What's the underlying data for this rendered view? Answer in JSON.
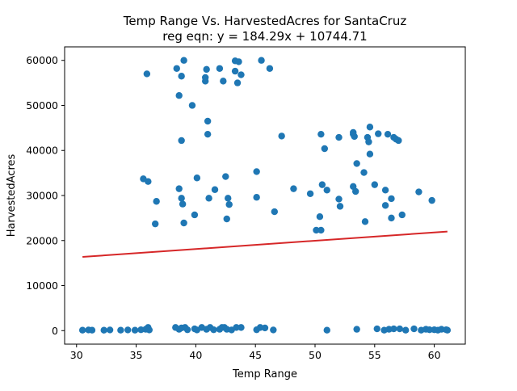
{
  "chart_data": {
    "type": "scatter",
    "title_line1": "Temp Range Vs. HarvestedAcres for SantaCruz",
    "title_line2": "reg eqn: y = 184.29x + 10744.71",
    "xlabel": "Temp Range",
    "ylabel": "HarvestedAcres",
    "xlim": [
      29.0,
      62.6
    ],
    "ylim": [
      -3000,
      63000
    ],
    "xticks": [
      30,
      35,
      40,
      45,
      50,
      55,
      60
    ],
    "yticks": [
      0,
      10000,
      20000,
      30000,
      40000,
      50000,
      60000
    ],
    "point_color": "#1f77b4",
    "line_color": "#d62728",
    "regression": {
      "slope": 184.29,
      "intercept": 10744.71,
      "x_range": [
        30.5,
        61.1
      ]
    },
    "points": [
      [
        35.9,
        57000
      ],
      [
        38.4,
        58200
      ],
      [
        38.8,
        56500
      ],
      [
        39.0,
        60000
      ],
      [
        38.6,
        52200
      ],
      [
        39.7,
        50000
      ],
      [
        40.8,
        56200
      ],
      [
        40.8,
        55400
      ],
      [
        40.9,
        58000
      ],
      [
        42.0,
        58200
      ],
      [
        42.3,
        55400
      ],
      [
        43.3,
        59900
      ],
      [
        43.3,
        57600
      ],
      [
        43.6,
        59700
      ],
      [
        43.8,
        56800
      ],
      [
        43.5,
        55000
      ],
      [
        45.5,
        60000
      ],
      [
        46.2,
        58200
      ],
      [
        41.0,
        46500
      ],
      [
        41.0,
        43600
      ],
      [
        38.8,
        42200
      ],
      [
        47.2,
        43200
      ],
      [
        35.6,
        33700
      ],
      [
        36.0,
        33100
      ],
      [
        38.6,
        31500
      ],
      [
        38.8,
        29400
      ],
      [
        38.9,
        28100
      ],
      [
        39.0,
        23900
      ],
      [
        36.7,
        28700
      ],
      [
        36.6,
        23700
      ],
      [
        40.1,
        33900
      ],
      [
        39.9,
        25700
      ],
      [
        41.1,
        29400
      ],
      [
        41.6,
        31300
      ],
      [
        42.5,
        34200
      ],
      [
        42.7,
        29400
      ],
      [
        42.8,
        28000
      ],
      [
        42.6,
        24800
      ],
      [
        45.1,
        35300
      ],
      [
        45.1,
        29600
      ],
      [
        46.6,
        26400
      ],
      [
        48.2,
        31500
      ],
      [
        49.6,
        30400
      ],
      [
        50.4,
        25300
      ],
      [
        50.1,
        22300
      ],
      [
        50.5,
        22300
      ],
      [
        50.6,
        32400
      ],
      [
        51.0,
        31200
      ],
      [
        52.0,
        29200
      ],
      [
        52.1,
        27600
      ],
      [
        53.2,
        32000
      ],
      [
        53.4,
        30900
      ],
      [
        54.1,
        35100
      ],
      [
        54.2,
        24200
      ],
      [
        55.0,
        32400
      ],
      [
        55.9,
        31200
      ],
      [
        55.9,
        27800
      ],
      [
        56.4,
        29300
      ],
      [
        56.4,
        25000
      ],
      [
        57.3,
        25700
      ],
      [
        58.7,
        30800
      ],
      [
        59.8,
        28900
      ],
      [
        50.5,
        43600
      ],
      [
        50.8,
        40400
      ],
      [
        52.0,
        42900
      ],
      [
        53.2,
        44000
      ],
      [
        53.2,
        43600
      ],
      [
        53.3,
        43100
      ],
      [
        53.5,
        37100
      ],
      [
        54.4,
        42900
      ],
      [
        54.5,
        41900
      ],
      [
        54.6,
        45200
      ],
      [
        54.6,
        39200
      ],
      [
        55.3,
        43700
      ],
      [
        56.1,
        43600
      ],
      [
        56.6,
        42900
      ],
      [
        56.8,
        42500
      ],
      [
        57.0,
        42200
      ],
      [
        30.5,
        100
      ],
      [
        31.0,
        150
      ],
      [
        31.3,
        100
      ],
      [
        32.3,
        100
      ],
      [
        32.8,
        150
      ],
      [
        33.7,
        100
      ],
      [
        34.3,
        150
      ],
      [
        34.9,
        100
      ],
      [
        35.4,
        200
      ],
      [
        35.8,
        300
      ],
      [
        36.0,
        700
      ],
      [
        36.1,
        150
      ],
      [
        38.3,
        700
      ],
      [
        38.6,
        300
      ],
      [
        38.8,
        600
      ],
      [
        39.1,
        700
      ],
      [
        39.3,
        200
      ],
      [
        39.9,
        400
      ],
      [
        40.1,
        150
      ],
      [
        40.5,
        700
      ],
      [
        40.9,
        300
      ],
      [
        41.2,
        700
      ],
      [
        41.5,
        200
      ],
      [
        42.0,
        300
      ],
      [
        42.2,
        700
      ],
      [
        42.4,
        700
      ],
      [
        42.6,
        300
      ],
      [
        43.0,
        150
      ],
      [
        43.4,
        700
      ],
      [
        43.8,
        700
      ],
      [
        45.1,
        200
      ],
      [
        45.4,
        700
      ],
      [
        45.8,
        600
      ],
      [
        46.5,
        150
      ],
      [
        51.0,
        100
      ],
      [
        53.5,
        300
      ],
      [
        55.2,
        400
      ],
      [
        55.8,
        100
      ],
      [
        56.2,
        300
      ],
      [
        56.6,
        400
      ],
      [
        57.1,
        400
      ],
      [
        57.6,
        100
      ],
      [
        58.3,
        400
      ],
      [
        58.9,
        100
      ],
      [
        59.3,
        300
      ],
      [
        59.6,
        200
      ],
      [
        60.0,
        200
      ],
      [
        60.3,
        100
      ],
      [
        60.6,
        300
      ],
      [
        61.0,
        200
      ],
      [
        61.1,
        100
      ]
    ]
  }
}
